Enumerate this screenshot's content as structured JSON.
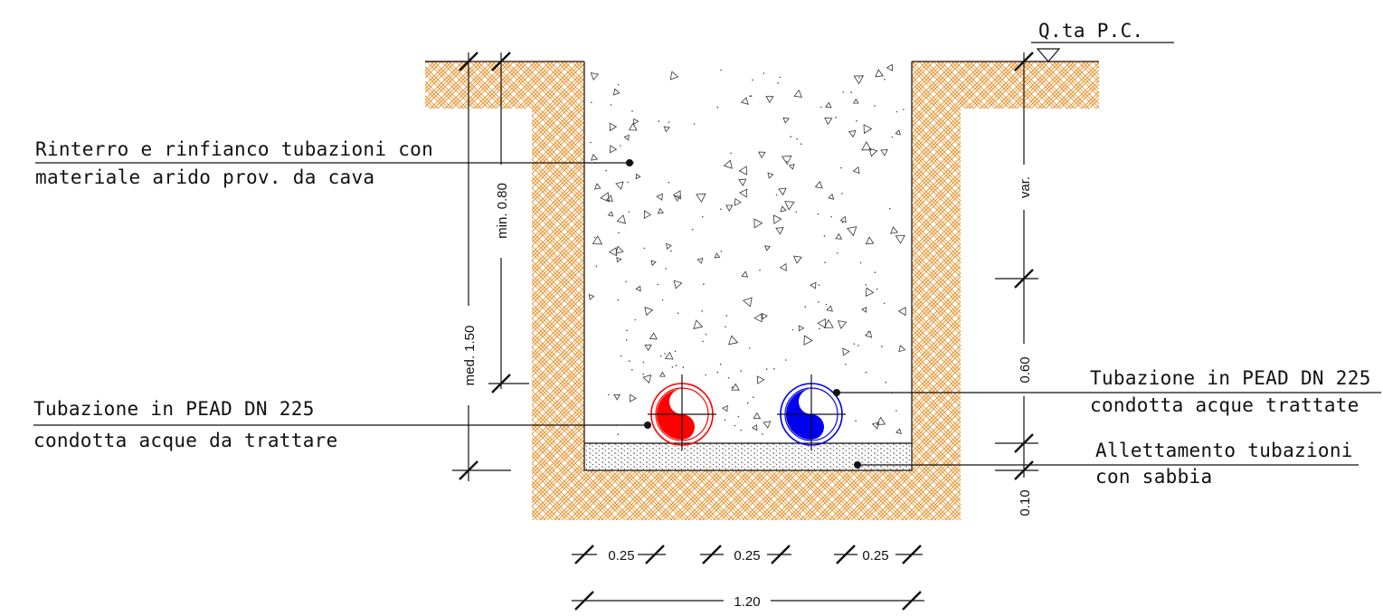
{
  "ground_level_label": "Q.ta P.C.",
  "callouts": {
    "backfill_line1": "Rinterro e rinfianco tubazioni con",
    "backfill_line2": "materiale arido prov. da cava",
    "pipe_left_line1": "Tubazione in PEAD DN 225",
    "pipe_left_line2": "condotta acque da trattare",
    "pipe_right_line1": "Tubazione in PEAD DN 225",
    "pipe_right_line2": "condotta acque trattate",
    "bedding_line1": "Allettamento tubazioni",
    "bedding_line2": "con sabbia"
  },
  "dimensions": {
    "avg_depth": "med. 1.50",
    "min_cover": "min. 0.80",
    "variable": "var.",
    "pipe_zone": "0.60",
    "bedding": "0.10",
    "spacing_1": "0.25",
    "spacing_2": "0.25",
    "spacing_3": "0.25",
    "total_width": "1.20"
  },
  "colors": {
    "soil_hatch": "#e89a3c",
    "pipe_untreated": "#ff0000",
    "pipe_treated": "#0000ee"
  }
}
